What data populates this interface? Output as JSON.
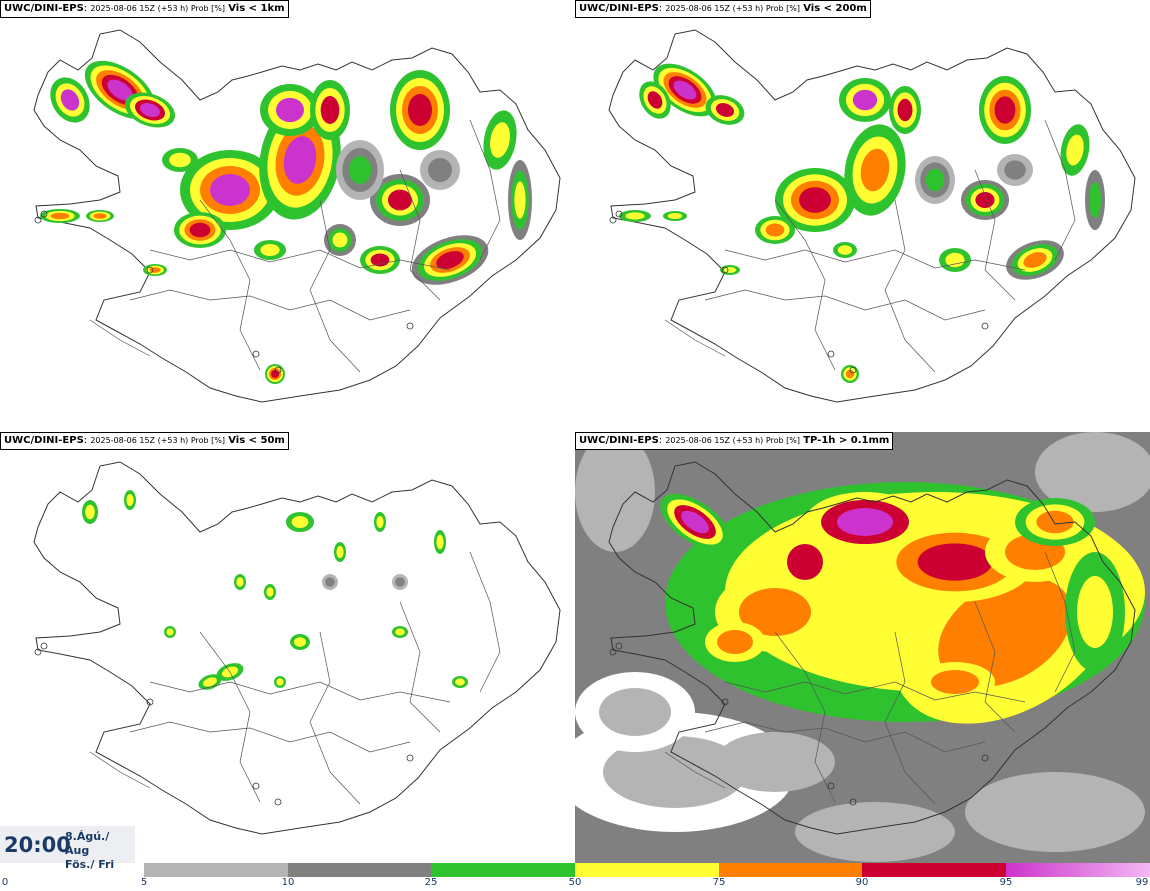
{
  "panels": [
    {
      "model": "UWC/DINI-EPS",
      "meta": "2025-08-06 15Z (+53 h) Prob [%]",
      "variable": "Vis < 1km"
    },
    {
      "model": "UWC/DINI-EPS",
      "meta": "2025-08-06 15Z (+53 h) Prob [%]",
      "variable": "Vis < 200m"
    },
    {
      "model": "UWC/DINI-EPS",
      "meta": "2025-08-06 15Z (+53 h) Prob [%]",
      "variable": "Vis < 50m"
    },
    {
      "model": "UWC/DINI-EPS",
      "meta": "2025-08-06 15Z (+53 h) Prob [%]",
      "variable": "TP-1h > 0.1mm"
    }
  ],
  "valid_time": {
    "time": "20:00",
    "date_line1": "8.Ágú./ Aug",
    "date_line2": "Fös./ Fri"
  },
  "colorbar": {
    "ticks": [
      "0",
      "5",
      "10",
      "25",
      "50",
      "75",
      "90",
      "95",
      "99"
    ],
    "colors": [
      "#ffffff",
      "#b4b4b4",
      "#808080",
      "#2fc22f",
      "#ffff33",
      "#ff7f00",
      "#cc0033",
      "#cc33cc"
    ]
  }
}
